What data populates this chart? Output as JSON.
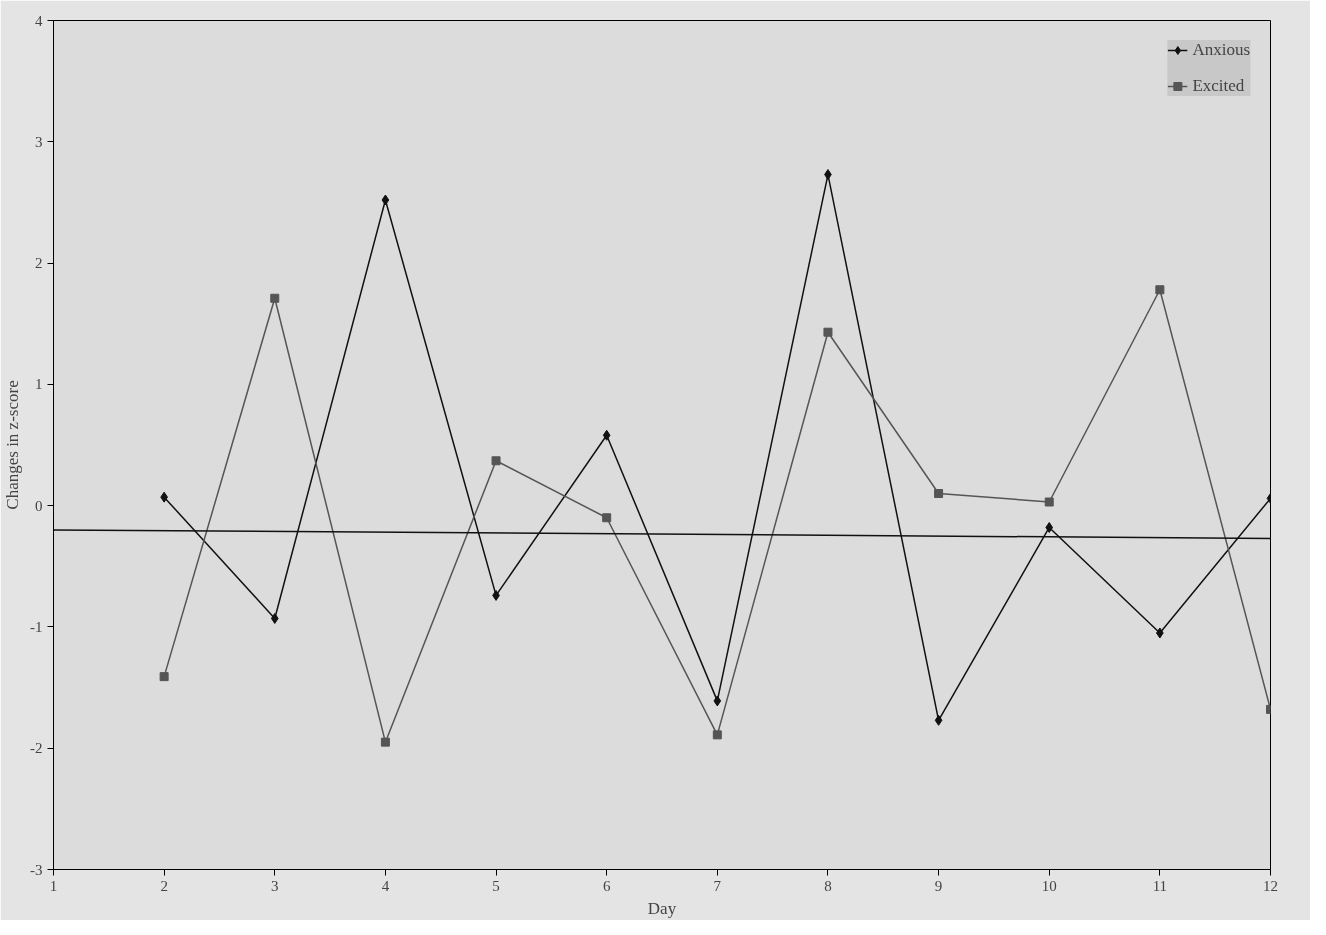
{
  "chart_data": {
    "type": "line",
    "xlabel": "Day",
    "ylabel": "Changes in z-score",
    "x": [
      2,
      3,
      4,
      5,
      6,
      7,
      8,
      9,
      10,
      11,
      12
    ],
    "xlim": [
      1,
      12
    ],
    "ylim": [
      -3,
      4
    ],
    "xticks": [
      1,
      2,
      3,
      4,
      5,
      6,
      7,
      8,
      9,
      10,
      11,
      12
    ],
    "yticks": [
      -3,
      -2,
      -1,
      0,
      1,
      2,
      3,
      4
    ],
    "grid": false,
    "legend": "top right",
    "series": [
      {
        "name": "Anxious",
        "color": "#111111",
        "marker": "diamond",
        "values": [
          0.07,
          -0.93,
          2.52,
          -0.74,
          0.58,
          -1.61,
          2.73,
          -1.77,
          -0.18,
          -1.05,
          0.06
        ]
      },
      {
        "name": "Excited",
        "color": "#555555",
        "marker": "square",
        "values": [
          -1.41,
          1.71,
          -1.95,
          0.37,
          -0.1,
          -1.89,
          1.43,
          0.1,
          0.03,
          1.78,
          -1.68
        ]
      },
      {
        "type": "line",
        "color": "#111111",
        "marker": "none",
        "x": [
          1,
          12
        ],
        "values": [
          -0.2,
          -0.27
        ]
      }
    ]
  }
}
